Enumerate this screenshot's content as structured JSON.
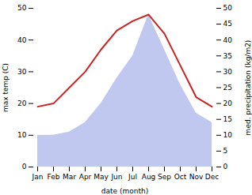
{
  "chart_data": {
    "type": "line",
    "categories": [
      "Jan",
      "Feb",
      "Mar",
      "Apr",
      "May",
      "Jun",
      "Jul",
      "Aug",
      "Sep",
      "Oct",
      "Nov",
      "Dec"
    ],
    "xlabel": "date (month)",
    "ylabel": "max temp (C)",
    "y2label": "med. precipitation (kg/m2)",
    "ylim": [
      0,
      50
    ],
    "yticks": [
      0,
      10,
      20,
      30,
      40,
      50
    ],
    "y2lim": [
      0,
      50
    ],
    "y2ticks": [
      0,
      5,
      10,
      15,
      20,
      25,
      30,
      35,
      40,
      45,
      50
    ],
    "series": [
      {
        "type": "area",
        "axis": "y2",
        "color": "#c0c8f0",
        "values": [
          10,
          10,
          11,
          14,
          20,
          28,
          35,
          48,
          37,
          26,
          17,
          14
        ]
      },
      {
        "type": "line",
        "color": "#cc2222",
        "values": [
          19,
          20,
          25,
          30,
          37,
          43,
          46,
          48,
          42,
          32,
          22,
          19
        ]
      }
    ]
  }
}
